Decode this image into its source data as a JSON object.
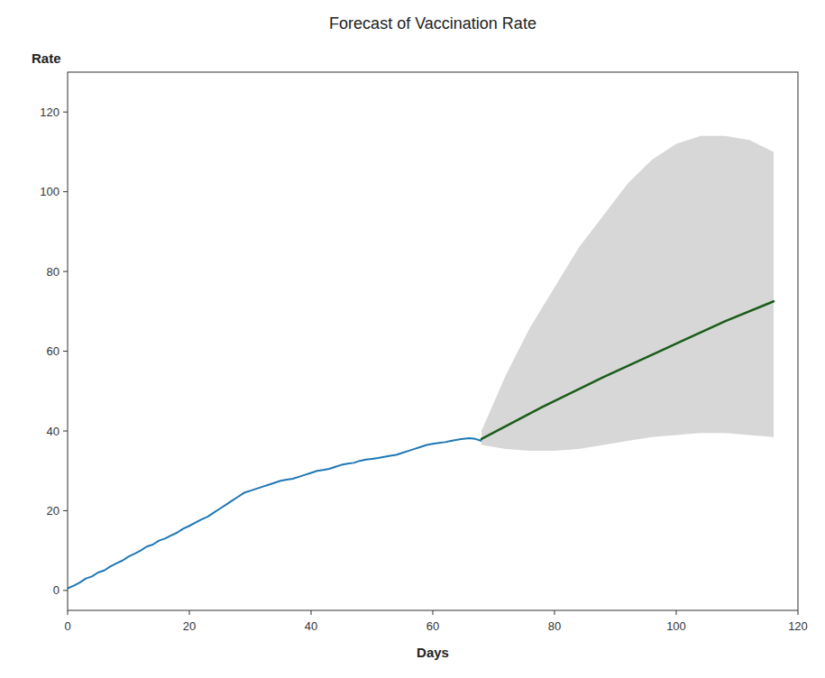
{
  "chart_data": {
    "type": "line",
    "title": "Forecast of Vaccination Rate",
    "x_label": "Days",
    "y_label": "Rate",
    "xlim": [
      0,
      120
    ],
    "ylim": [
      -5,
      130
    ],
    "xticks": [
      0,
      20,
      40,
      60,
      80,
      100,
      120
    ],
    "yticks": [
      0,
      20,
      40,
      60,
      80,
      100,
      120
    ],
    "grid": false,
    "series": [
      {
        "type": "line",
        "color": "#1f77b4",
        "x": [
          0,
          1,
          2,
          3,
          4,
          5,
          6,
          7,
          8,
          9,
          10,
          11,
          12,
          13,
          14,
          15,
          16,
          17,
          18,
          19,
          20,
          21,
          22,
          23,
          24,
          25,
          26,
          27,
          28,
          29,
          30,
          31,
          32,
          33,
          34,
          35,
          36,
          37,
          38,
          39,
          40,
          41,
          42,
          43,
          44,
          45,
          46,
          47,
          48,
          49,
          50,
          51,
          52,
          53,
          54,
          55,
          56,
          57,
          58,
          59,
          60,
          61,
          62,
          63,
          64,
          65,
          66,
          67,
          68
        ],
        "values": [
          0.5,
          1.2,
          2.0,
          3.0,
          3.5,
          4.5,
          5.0,
          6.0,
          6.8,
          7.5,
          8.5,
          9.2,
          10.0,
          11.0,
          11.5,
          12.5,
          13.0,
          13.8,
          14.5,
          15.5,
          16.2,
          17.0,
          17.8,
          18.5,
          19.5,
          20.5,
          21.5,
          22.5,
          23.5,
          24.5,
          25.0,
          25.5,
          26.0,
          26.5,
          27.0,
          27.5,
          27.8,
          28.0,
          28.5,
          29.0,
          29.5,
          30.0,
          30.2,
          30.5,
          31.0,
          31.5,
          31.8,
          32.0,
          32.5,
          32.8,
          33.0,
          33.2,
          33.5,
          33.8,
          34.0,
          34.5,
          35.0,
          35.5,
          36.0,
          36.5,
          36.8,
          37.0,
          37.2,
          37.5,
          37.8,
          38.0,
          38.2,
          38.0,
          37.5
        ]
      },
      {
        "type": "area",
        "color": "#d0d0d0",
        "x": [
          68,
          72,
          76,
          80,
          84,
          88,
          92,
          96,
          100,
          104,
          108,
          112,
          116
        ],
        "upper": [
          40.0,
          54.0,
          66.0,
          76.0,
          86.0,
          94.0,
          102.0,
          108.0,
          112.0,
          114.0,
          114.0,
          113.0,
          110.0
        ],
        "lower": [
          36.5,
          35.5,
          35.0,
          35.0,
          35.5,
          36.5,
          37.5,
          38.5,
          39.0,
          39.5,
          39.5,
          39.0,
          38.5
        ]
      },
      {
        "type": "line",
        "color": "#1a5c1a",
        "x": [
          68,
          78,
          88,
          98,
          108,
          116
        ],
        "values": [
          38.0,
          46.0,
          53.5,
          60.5,
          67.5,
          72.5
        ]
      }
    ]
  }
}
